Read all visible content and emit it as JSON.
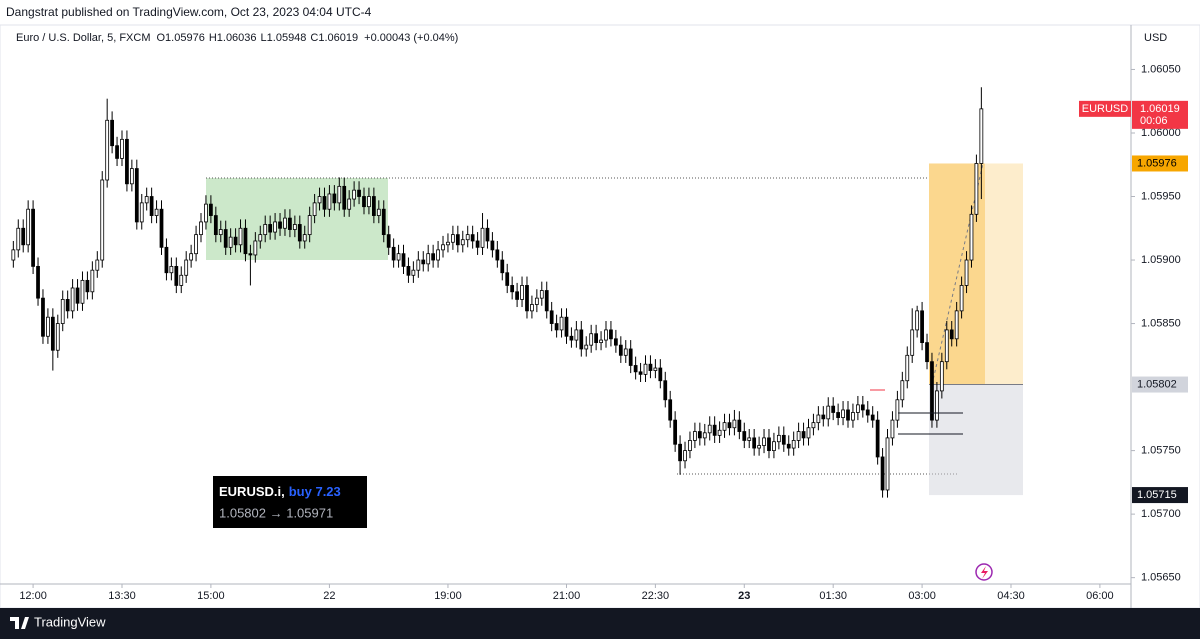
{
  "header": "Dangstrat published on TradingView.com, Oct 23, 2023 04:04 UTC-4",
  "footer": "TradingView",
  "chart_data": {
    "type": "candlestick",
    "title": "Euro / U.S. Dollar, 5, FXCM",
    "ohlc_legend": [
      {
        "key": "O",
        "value": 1.05976
      },
      {
        "key": "H",
        "value": 1.06036
      },
      {
        "key": "L",
        "value": 1.05948
      },
      {
        "key": "C",
        "value": 1.06019
      }
    ],
    "change": "+0.00043 (+0.04%)",
    "currency": "USD",
    "up_color": "#ffffff",
    "down_color": "#000000",
    "wick_color": "#000000",
    "grid": false,
    "ylim": [
      1.05645,
      1.06085
    ],
    "yticks": [
      {
        "value": 1.0605,
        "label": "1.06050"
      },
      {
        "value": 1.06,
        "label": "1.06000"
      },
      {
        "value": 1.0595,
        "label": "1.05950"
      },
      {
        "value": 1.059,
        "label": "1.05900"
      },
      {
        "value": 1.0585,
        "label": "1.05850"
      },
      {
        "value": 1.0575,
        "label": "1.05750"
      },
      {
        "value": 1.057,
        "label": "1.05700"
      },
      {
        "value": 1.0565,
        "label": "1.05650"
      }
    ],
    "xlim": [
      -2.7,
      226.3
    ],
    "xticks": [
      {
        "value": 4,
        "label": "12:00"
      },
      {
        "value": 22,
        "label": "13:30"
      },
      {
        "value": 40,
        "label": "15:00"
      },
      {
        "value": 64,
        "label": "22"
      },
      {
        "value": 88,
        "label": "19:00"
      },
      {
        "value": 112,
        "label": "21:00"
      },
      {
        "value": 130,
        "label": "22:30"
      },
      {
        "value": 148,
        "label": "23",
        "bold": true
      },
      {
        "value": 166,
        "label": "01:30"
      },
      {
        "value": 184,
        "label": "03:00"
      },
      {
        "value": 202,
        "label": "04:30"
      },
      {
        "value": 220,
        "label": "06:00"
      }
    ],
    "price_labels": {
      "last": {
        "name": "EURUSD",
        "value": 1.06019,
        "countdown": "00:06",
        "color": "#f23645"
      },
      "target": {
        "value": 1.05976,
        "color": "#f7a600"
      },
      "entry": {
        "value": 1.05802,
        "color": "#d1d4dc"
      },
      "stop": {
        "value": 1.05715,
        "color": "#131722"
      }
    },
    "annotation": {
      "symbol": "EURUSD.i,",
      "action": "buy 7.23",
      "prices": "1.05802 → 1.05971"
    },
    "candles": [
      [
        1.059,
        1.05915,
        1.05894,
        1.05908
      ],
      [
        1.05908,
        1.05932,
        1.05902,
        1.05925
      ],
      [
        1.05925,
        1.05932,
        1.05906,
        1.05912
      ],
      [
        1.05912,
        1.05947,
        1.05906,
        1.0594
      ],
      [
        1.0594,
        1.05947,
        1.05889,
        1.05895
      ],
      [
        1.05895,
        1.05902,
        1.05864,
        1.0587
      ],
      [
        1.0587,
        1.05877,
        1.05834,
        1.0584
      ],
      [
        1.0584,
        1.05862,
        1.05834,
        1.05855
      ],
      [
        1.05855,
        1.05862,
        1.05813,
        1.05829
      ],
      [
        1.05829,
        1.05857,
        1.05823,
        1.0585
      ],
      [
        1.0585,
        1.05876,
        1.05844,
        1.05869
      ],
      [
        1.05869,
        1.05876,
        1.05854,
        1.0586
      ],
      [
        1.0586,
        1.05885,
        1.05854,
        1.05878
      ],
      [
        1.05878,
        1.05885,
        1.0586,
        1.05866
      ],
      [
        1.05866,
        1.05891,
        1.0586,
        1.05884
      ],
      [
        1.05884,
        1.05891,
        1.05869,
        1.05875
      ],
      [
        1.05875,
        1.05899,
        1.05869,
        1.05892
      ],
      [
        1.05892,
        1.05907,
        1.05886,
        1.059
      ],
      [
        1.059,
        1.0597,
        1.05894,
        1.05963
      ],
      [
        1.05963,
        1.06027,
        1.05957,
        1.0601
      ],
      [
        1.0601,
        1.06017,
        1.05984,
        1.0599
      ],
      [
        1.0599,
        1.05997,
        1.05974,
        1.0598
      ],
      [
        1.0598,
        1.06002,
        1.05974,
        1.05995
      ],
      [
        1.05995,
        1.06002,
        1.05954,
        1.0596
      ],
      [
        1.0596,
        1.05979,
        1.05954,
        1.05972
      ],
      [
        1.05972,
        1.05979,
        1.05924,
        1.0593
      ],
      [
        1.0593,
        1.05952,
        1.05924,
        1.05945
      ],
      [
        1.05945,
        1.05957,
        1.05939,
        1.0595
      ],
      [
        1.0595,
        1.05957,
        1.05929,
        1.05935
      ],
      [
        1.05935,
        1.05947,
        1.05929,
        1.0594
      ],
      [
        1.0594,
        1.05947,
        1.05904,
        1.0591
      ],
      [
        1.0591,
        1.05917,
        1.05884,
        1.0589
      ],
      [
        1.0589,
        1.05902,
        1.05884,
        1.05895
      ],
      [
        1.05895,
        1.05902,
        1.05874,
        1.0588
      ],
      [
        1.0588,
        1.05895,
        1.05874,
        1.05888
      ],
      [
        1.05888,
        1.05907,
        1.05882,
        1.059
      ],
      [
        1.059,
        1.05912,
        1.05894,
        1.05905
      ],
      [
        1.05905,
        1.05927,
        1.05899,
        1.0592
      ],
      [
        1.0592,
        1.05937,
        1.05914,
        1.0593
      ],
      [
        1.0593,
        1.05951,
        1.05924,
        1.05944
      ],
      [
        1.05944,
        1.05951,
        1.05929,
        1.05935
      ],
      [
        1.05935,
        1.05942,
        1.05914,
        1.0592
      ],
      [
        1.0592,
        1.05931,
        1.05914,
        1.05924
      ],
      [
        1.05924,
        1.05931,
        1.05904,
        1.0591
      ],
      [
        1.0591,
        1.05925,
        1.05904,
        1.05918
      ],
      [
        1.05918,
        1.05925,
        1.05906,
        1.05912
      ],
      [
        1.05912,
        1.05932,
        1.05906,
        1.05925
      ],
      [
        1.05925,
        1.05932,
        1.05899,
        1.05905
      ],
      [
        1.05905,
        1.05912,
        1.0588,
        1.05904
      ],
      [
        1.05904,
        1.05922,
        1.05898,
        1.05915
      ],
      [
        1.05915,
        1.05927,
        1.05909,
        1.0592
      ],
      [
        1.0592,
        1.05935,
        1.05914,
        1.05928
      ],
      [
        1.05928,
        1.05935,
        1.05916,
        1.05922
      ],
      [
        1.05922,
        1.05937,
        1.05916,
        1.0593
      ],
      [
        1.0593,
        1.05937,
        1.05919,
        1.05925
      ],
      [
        1.05925,
        1.0594,
        1.05919,
        1.05933
      ],
      [
        1.05933,
        1.0594,
        1.05918,
        1.05924
      ],
      [
        1.05924,
        1.05935,
        1.05918,
        1.05928
      ],
      [
        1.05928,
        1.05935,
        1.05909,
        1.05915
      ],
      [
        1.05915,
        1.05927,
        1.05909,
        1.0592
      ],
      [
        1.0592,
        1.05942,
        1.05914,
        1.05935
      ],
      [
        1.05935,
        1.05952,
        1.05929,
        1.05945
      ],
      [
        1.05945,
        1.05957,
        1.05939,
        1.0595
      ],
      [
        1.0595,
        1.05957,
        1.05934,
        1.0594
      ],
      [
        1.0594,
        1.05959,
        1.05934,
        1.05952
      ],
      [
        1.05952,
        1.05959,
        1.05939,
        1.05945
      ],
      [
        1.05945,
        1.05965,
        1.05939,
        1.05958
      ],
      [
        1.05958,
        1.05965,
        1.05934,
        1.0594
      ],
      [
        1.0594,
        1.05955,
        1.05934,
        1.05948
      ],
      [
        1.05948,
        1.05962,
        1.05942,
        1.05955
      ],
      [
        1.05955,
        1.05962,
        1.05944,
        1.0595
      ],
      [
        1.0595,
        1.05957,
        1.05936,
        1.05942
      ],
      [
        1.05942,
        1.05957,
        1.05936,
        1.0595
      ],
      [
        1.0595,
        1.05957,
        1.05929,
        1.05935
      ],
      [
        1.05935,
        1.05947,
        1.05929,
        1.0594
      ],
      [
        1.0594,
        1.05947,
        1.05914,
        1.0592
      ],
      [
        1.0592,
        1.05927,
        1.05904,
        1.0591
      ],
      [
        1.0591,
        1.05917,
        1.05894,
        1.059
      ],
      [
        1.059,
        1.05912,
        1.05894,
        1.05905
      ],
      [
        1.05905,
        1.05912,
        1.05889,
        1.05895
      ],
      [
        1.05895,
        1.05902,
        1.05882,
        1.05888
      ],
      [
        1.05888,
        1.05899,
        1.05882,
        1.05892
      ],
      [
        1.05892,
        1.05907,
        1.05886,
        1.059
      ],
      [
        1.059,
        1.05907,
        1.05891,
        1.05897
      ],
      [
        1.05897,
        1.05912,
        1.05891,
        1.05905
      ],
      [
        1.05905,
        1.05912,
        1.05894,
        1.059
      ],
      [
        1.059,
        1.05915,
        1.05894,
        1.05908
      ],
      [
        1.05908,
        1.05919,
        1.05902,
        1.05912
      ],
      [
        1.05912,
        1.05921,
        1.05906,
        1.05914
      ],
      [
        1.05914,
        1.05927,
        1.05908,
        1.0592
      ],
      [
        1.0592,
        1.05927,
        1.05906,
        1.05912
      ],
      [
        1.05912,
        1.05923,
        1.05906,
        1.05916
      ],
      [
        1.05916,
        1.05927,
        1.0591,
        1.0592
      ],
      [
        1.0592,
        1.05927,
        1.05909,
        1.05915
      ],
      [
        1.05915,
        1.05922,
        1.05904,
        1.0591
      ],
      [
        1.0591,
        1.05937,
        1.05904,
        1.05925
      ],
      [
        1.05925,
        1.05932,
        1.05909,
        1.05915
      ],
      [
        1.05915,
        1.05922,
        1.05902,
        1.05908
      ],
      [
        1.05908,
        1.05915,
        1.05894,
        1.059
      ],
      [
        1.059,
        1.05907,
        1.05884,
        1.0589
      ],
      [
        1.0589,
        1.05897,
        1.05874,
        1.0588
      ],
      [
        1.0588,
        1.05887,
        1.05869,
        1.05875
      ],
      [
        1.05875,
        1.05882,
        1.05863,
        1.05869
      ],
      [
        1.05869,
        1.05887,
        1.05863,
        1.0588
      ],
      [
        1.0588,
        1.05887,
        1.05854,
        1.0586
      ],
      [
        1.0586,
        1.05872,
        1.05854,
        1.05865
      ],
      [
        1.05865,
        1.05877,
        1.05859,
        1.0587
      ],
      [
        1.0587,
        1.05883,
        1.05864,
        1.05876
      ],
      [
        1.05876,
        1.05883,
        1.05854,
        1.0586
      ],
      [
        1.0586,
        1.05867,
        1.05844,
        1.0585
      ],
      [
        1.0585,
        1.05857,
        1.05839,
        1.05845
      ],
      [
        1.05845,
        1.05862,
        1.05839,
        1.05855
      ],
      [
        1.05855,
        1.05862,
        1.05834,
        1.0584
      ],
      [
        1.0584,
        1.05847,
        1.05831,
        1.05837
      ],
      [
        1.05837,
        1.05852,
        1.05831,
        1.05845
      ],
      [
        1.05845,
        1.05852,
        1.05824,
        1.0583
      ],
      [
        1.0583,
        1.0584,
        1.05824,
        1.05833
      ],
      [
        1.05833,
        1.05849,
        1.05827,
        1.05842
      ],
      [
        1.05842,
        1.05849,
        1.05829,
        1.05835
      ],
      [
        1.05835,
        1.05844,
        1.05829,
        1.05837
      ],
      [
        1.05837,
        1.05852,
        1.05831,
        1.05845
      ],
      [
        1.05845,
        1.05852,
        1.05832,
        1.05838
      ],
      [
        1.05838,
        1.05845,
        1.05827,
        1.05833
      ],
      [
        1.05833,
        1.0584,
        1.05819,
        1.05825
      ],
      [
        1.05825,
        1.05837,
        1.05819,
        1.0583
      ],
      [
        1.0583,
        1.05837,
        1.05811,
        1.05817
      ],
      [
        1.05817,
        1.05824,
        1.05806,
        1.05812
      ],
      [
        1.05812,
        1.05819,
        1.05804,
        1.0581
      ],
      [
        1.0581,
        1.05825,
        1.05804,
        1.05818
      ],
      [
        1.05818,
        1.05825,
        1.05807,
        1.05813
      ],
      [
        1.05813,
        1.05822,
        1.05807,
        1.05815
      ],
      [
        1.05815,
        1.05822,
        1.05799,
        1.05805
      ],
      [
        1.05805,
        1.05812,
        1.05784,
        1.0579
      ],
      [
        1.0579,
        1.05797,
        1.05768,
        1.05774
      ],
      [
        1.05774,
        1.05781,
        1.05749,
        1.05755
      ],
      [
        1.05755,
        1.05762,
        1.05731,
        1.05742
      ],
      [
        1.05742,
        1.05757,
        1.05736,
        1.0575
      ],
      [
        1.0575,
        1.05765,
        1.05744,
        1.05758
      ],
      [
        1.05758,
        1.05772,
        1.05752,
        1.05765
      ],
      [
        1.05765,
        1.05772,
        1.05754,
        1.0576
      ],
      [
        1.0576,
        1.05771,
        1.05754,
        1.05764
      ],
      [
        1.05764,
        1.05777,
        1.05758,
        1.0577
      ],
      [
        1.0577,
        1.05777,
        1.05756,
        1.05762
      ],
      [
        1.05762,
        1.05773,
        1.05756,
        1.05766
      ],
      [
        1.05766,
        1.05779,
        1.0576,
        1.05772
      ],
      [
        1.05772,
        1.05779,
        1.05762,
        1.05768
      ],
      [
        1.05768,
        1.05782,
        1.05762,
        1.05774
      ],
      [
        1.05774,
        1.05781,
        1.05759,
        1.05765
      ],
      [
        1.05765,
        1.05772,
        1.05752,
        1.05758
      ],
      [
        1.05758,
        1.05767,
        1.05752,
        1.0576
      ],
      [
        1.0576,
        1.05767,
        1.05746,
        1.05752
      ],
      [
        1.05752,
        1.05761,
        1.05746,
        1.05754
      ],
      [
        1.05754,
        1.05767,
        1.05748,
        1.0576
      ],
      [
        1.0576,
        1.05767,
        1.05744,
        1.0575
      ],
      [
        1.0575,
        1.05764,
        1.05744,
        1.05757
      ],
      [
        1.05757,
        1.05769,
        1.05751,
        1.05762
      ],
      [
        1.05762,
        1.05769,
        1.05749,
        1.05755
      ],
      [
        1.05755,
        1.05762,
        1.05746,
        1.05752
      ],
      [
        1.05752,
        1.05765,
        1.05746,
        1.05758
      ],
      [
        1.05758,
        1.05772,
        1.05752,
        1.05765
      ],
      [
        1.05765,
        1.05772,
        1.05754,
        1.0576
      ],
      [
        1.0576,
        1.05775,
        1.05754,
        1.05768
      ],
      [
        1.05768,
        1.05779,
        1.05762,
        1.05772
      ],
      [
        1.05772,
        1.05785,
        1.05766,
        1.05778
      ],
      [
        1.05778,
        1.05785,
        1.05769,
        1.05775
      ],
      [
        1.05775,
        1.05792,
        1.05769,
        1.05785
      ],
      [
        1.05785,
        1.05792,
        1.05774,
        1.0578
      ],
      [
        1.0578,
        1.05787,
        1.0577,
        1.05776
      ],
      [
        1.05776,
        1.05789,
        1.0577,
        1.05782
      ],
      [
        1.05782,
        1.05789,
        1.05768,
        1.05774
      ],
      [
        1.05774,
        1.05787,
        1.05768,
        1.0578
      ],
      [
        1.0578,
        1.05793,
        1.05774,
        1.05786
      ],
      [
        1.05786,
        1.05793,
        1.05776,
        1.05782
      ],
      [
        1.05782,
        1.05789,
        1.05772,
        1.05778
      ],
      [
        1.05778,
        1.05785,
        1.05768,
        1.05774
      ],
      [
        1.05774,
        1.05781,
        1.05739,
        1.05745
      ],
      [
        1.05745,
        1.05752,
        1.05713,
        1.05719
      ],
      [
        1.05719,
        1.05767,
        1.05713,
        1.0576
      ],
      [
        1.0576,
        1.05781,
        1.05754,
        1.05774
      ],
      [
        1.05774,
        1.05797,
        1.05768,
        1.0579
      ],
      [
        1.0579,
        1.05812,
        1.05784,
        1.05805
      ],
      [
        1.05805,
        1.05832,
        1.05799,
        1.05825
      ],
      [
        1.05825,
        1.05862,
        1.05819,
        1.05845
      ],
      [
        1.05845,
        1.05864,
        1.05839,
        1.0586
      ],
      [
        1.0586,
        1.05867,
        1.05829,
        1.05835
      ],
      [
        1.05835,
        1.05842,
        1.05814,
        1.0582
      ],
      [
        1.0582,
        1.05827,
        1.05768,
        1.05774
      ],
      [
        1.05774,
        1.05804,
        1.05768,
        1.05797
      ],
      [
        1.05797,
        1.05827,
        1.05791,
        1.0582
      ],
      [
        1.0582,
        1.05852,
        1.05814,
        1.05845
      ],
      [
        1.05845,
        1.05852,
        1.05832,
        1.05838
      ],
      [
        1.05838,
        1.05867,
        1.05832,
        1.0586
      ],
      [
        1.0586,
        1.05887,
        1.05854,
        1.0588
      ],
      [
        1.0588,
        1.05907,
        1.05874,
        1.059
      ],
      [
        1.059,
        1.05943,
        1.05894,
        1.05936
      ],
      [
        1.05936,
        1.05983,
        1.0593,
        1.05976
      ],
      [
        1.05976,
        1.06036,
        1.05948,
        1.06019
      ]
    ]
  }
}
